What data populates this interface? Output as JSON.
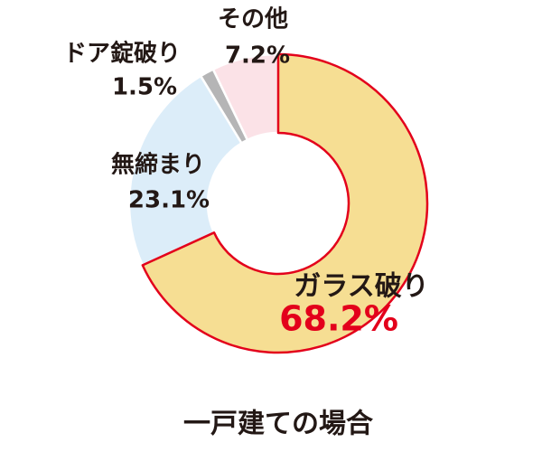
{
  "chart_data": {
    "type": "donut",
    "title": "一戸建ての場合",
    "categories": [
      "ガラス破り",
      "無締まり",
      "ドア錠破り",
      "その他"
    ],
    "values": [
      68.2,
      23.1,
      1.5,
      7.2
    ],
    "value_labels": [
      "68.2%",
      "23.1%",
      "1.5%",
      "7.2%"
    ],
    "colors": [
      "#f6de93",
      "#dcedf9",
      "#b5b5b6",
      "#fbe2e7"
    ],
    "stroke_colors": [
      "#e3001b",
      "#ffffff",
      "#ffffff",
      "#ffffff"
    ],
    "label_colors": [
      "#e3001b",
      "#231815",
      "#231815",
      "#231815"
    ]
  }
}
